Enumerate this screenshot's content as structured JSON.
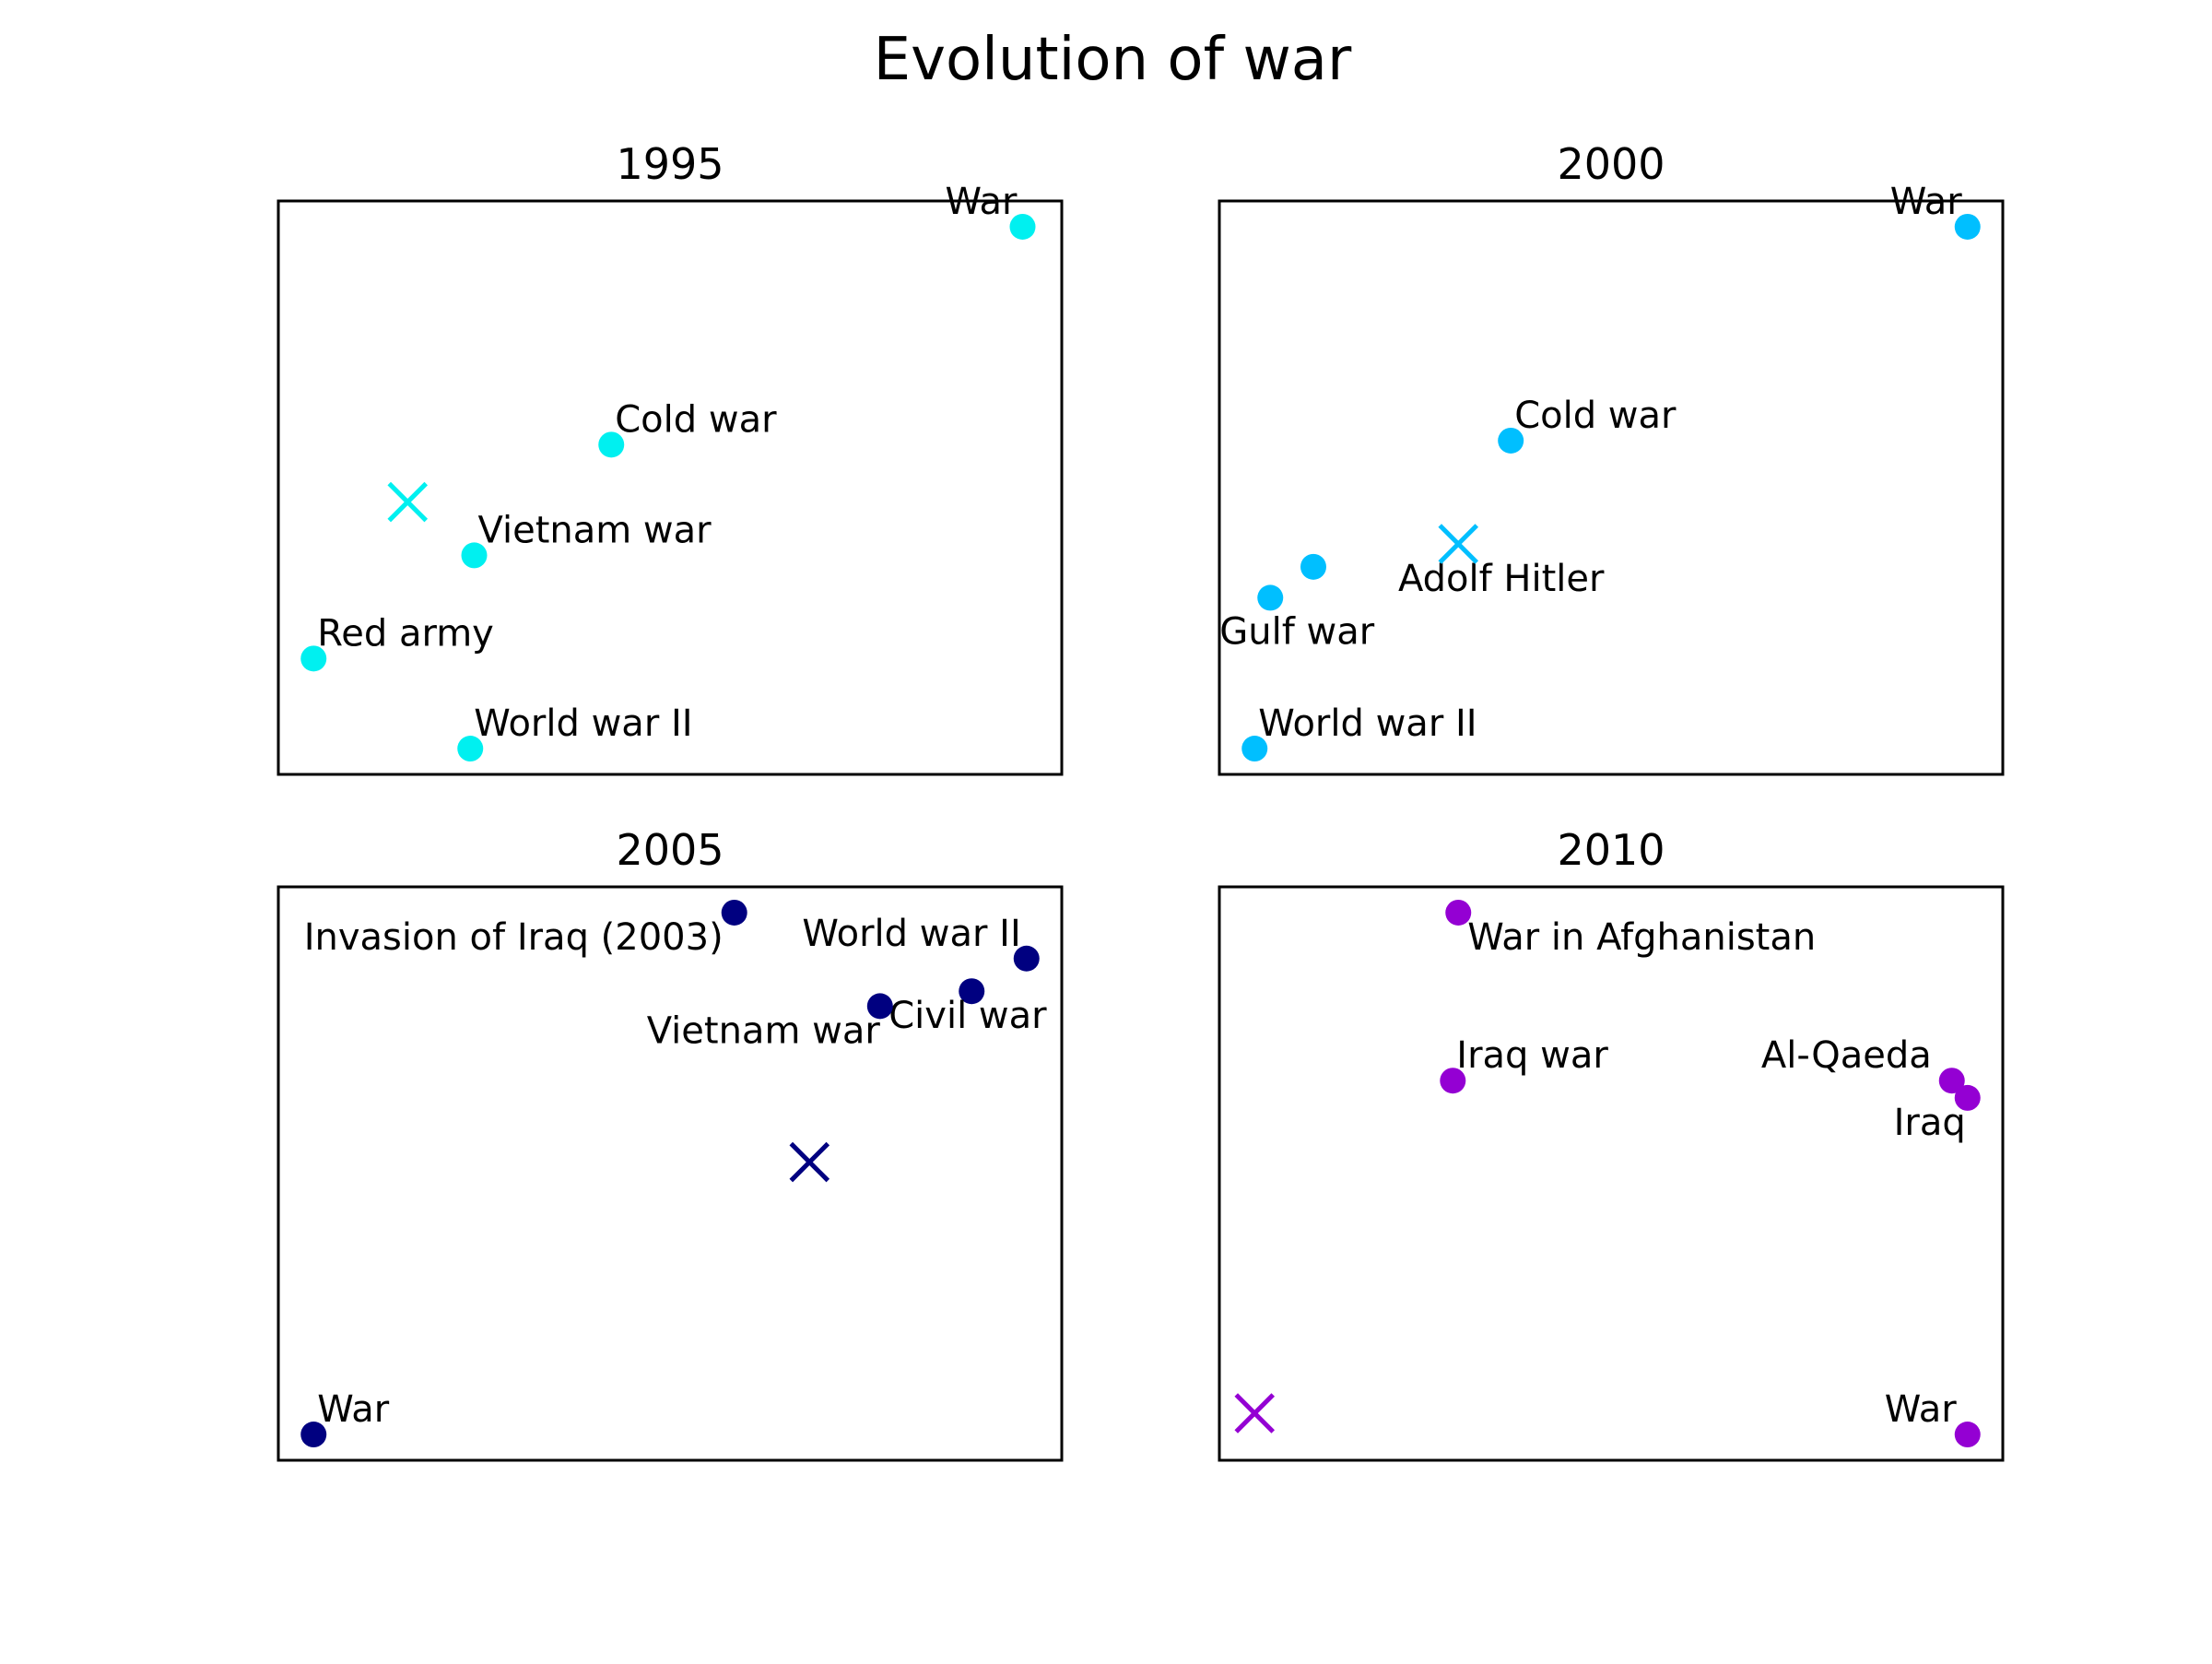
{
  "figure": {
    "title": "Evolution of war"
  },
  "chart_data": [
    {
      "type": "scatter",
      "title": "1995",
      "xlabel": "",
      "ylabel": "",
      "grid": false,
      "color": "#00f0f0",
      "xlim": [
        0,
        100
      ],
      "ylim": [
        0,
        100
      ],
      "points": [
        {
          "label": "War",
          "x": 95.0,
          "y": 95.5,
          "label_anchor": "end"
        },
        {
          "label": "Cold war",
          "x": 42.5,
          "y": 57.5,
          "label_anchor": "start"
        },
        {
          "label": "Vietnam war",
          "x": 25.0,
          "y": 38.2,
          "label_anchor": "start"
        },
        {
          "label": "Red army",
          "x": 4.5,
          "y": 20.2,
          "label_anchor": "start"
        },
        {
          "label": "World war II",
          "x": 24.5,
          "y": 4.5,
          "label_anchor": "start"
        }
      ],
      "centroid": {
        "x": 16.5,
        "y": 47.5
      }
    },
    {
      "type": "scatter",
      "title": "2000",
      "xlabel": "",
      "ylabel": "",
      "grid": false,
      "color": "#00bfff",
      "xlim": [
        0,
        100
      ],
      "ylim": [
        0,
        100
      ],
      "points": [
        {
          "label": "War",
          "x": 95.5,
          "y": 95.5,
          "label_anchor": "end"
        },
        {
          "label": "Cold war",
          "x": 37.2,
          "y": 58.2,
          "label_anchor": "start"
        },
        {
          "label": "Adolf Hitler",
          "x": 12.0,
          "y": 36.2,
          "label_anchor": "start",
          "label_dx": 92,
          "label_dy": 26
        },
        {
          "label": "Gulf war",
          "x": 6.5,
          "y": 30.8,
          "label_anchor": "start",
          "label_dx": -55,
          "label_dy": 50
        },
        {
          "label": "World war II",
          "x": 4.5,
          "y": 4.5,
          "label_anchor": "start"
        }
      ],
      "centroid": {
        "x": 30.5,
        "y": 40.2
      }
    },
    {
      "type": "scatter",
      "title": "2005",
      "xlabel": "",
      "ylabel": "",
      "grid": false,
      "color": "#000080",
      "xlim": [
        0,
        100
      ],
      "ylim": [
        0,
        100
      ],
      "points": [
        {
          "label": "Invasion of Iraq (2003)",
          "x": 58.2,
          "y": 95.5,
          "label_anchor": "end",
          "label_dx": -12,
          "label_dy": 40
        },
        {
          "label": "World war II",
          "x": 95.5,
          "y": 87.5,
          "label_anchor": "end",
          "label_dx": -6,
          "label_dy": -14
        },
        {
          "label": "Civil war",
          "x": 88.5,
          "y": 81.8,
          "label_anchor": "start",
          "label_dx": -90,
          "label_dy": 40
        },
        {
          "label": "Vietnam war",
          "x": 76.8,
          "y": 79.2,
          "label_anchor": "end",
          "label_dx": 0,
          "label_dy": 40
        },
        {
          "label": "War",
          "x": 4.5,
          "y": 4.5,
          "label_anchor": "start"
        }
      ],
      "centroid": {
        "x": 67.8,
        "y": 52.0
      }
    },
    {
      "type": "scatter",
      "title": "2010",
      "xlabel": "",
      "ylabel": "",
      "grid": false,
      "color": "#9400d3",
      "xlim": [
        0,
        100
      ],
      "ylim": [
        0,
        100
      ],
      "points": [
        {
          "label": "War in Afghanistan",
          "x": 30.5,
          "y": 95.5,
          "label_anchor": "start",
          "label_dx": 10,
          "label_dy": 40
        },
        {
          "label": "Iraq war",
          "x": 29.8,
          "y": 66.2,
          "label_anchor": "start"
        },
        {
          "label": "Al-Qaeda",
          "x": 93.5,
          "y": 66.2,
          "label_anchor": "end",
          "label_dx": -22,
          "label_dy": -14
        },
        {
          "label": "Iraq",
          "x": 95.5,
          "y": 63.2,
          "label_anchor": "end",
          "label_dx": -2,
          "label_dy": 40
        },
        {
          "label": "War",
          "x": 95.5,
          "y": 4.5,
          "label_anchor": "end",
          "label_dx": -12,
          "label_dy": -14
        }
      ],
      "centroid": {
        "x": 4.5,
        "y": 8.2
      }
    }
  ]
}
